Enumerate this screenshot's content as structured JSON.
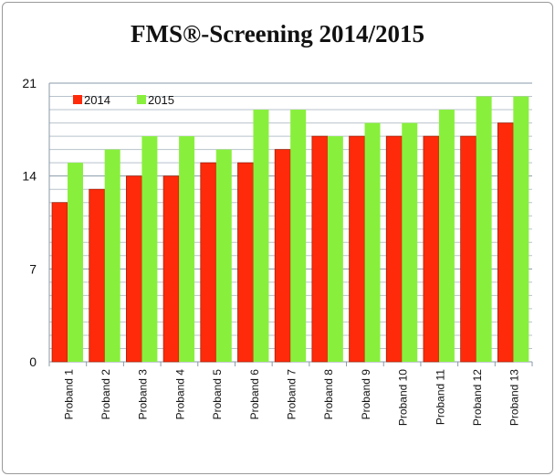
{
  "chart_data": {
    "type": "bar",
    "title": "FMS®-Screening 2014/2015",
    "categories": [
      "Proband 1",
      "Proband 2",
      "Proband 3",
      "Proband 4",
      "Proband 5",
      "Proband 6",
      "Proband 7",
      "Proband 8",
      "Proband 9",
      "Proband 10",
      "Proband 11",
      "Proband 12",
      "Proband 13"
    ],
    "series": [
      {
        "name": "2014",
        "color": "#ff2a0a",
        "values": [
          12,
          13,
          14,
          14,
          15,
          15,
          16,
          17,
          17,
          17,
          17,
          17,
          18
        ]
      },
      {
        "name": "2015",
        "color": "#88f03c",
        "values": [
          15,
          16,
          17,
          17,
          16,
          19,
          19,
          17,
          18,
          18,
          19,
          20,
          20
        ]
      }
    ],
    "ylim": [
      0,
      21
    ],
    "yticks": [
      0,
      7,
      14,
      21
    ],
    "grid": true,
    "legend": "top-left"
  }
}
